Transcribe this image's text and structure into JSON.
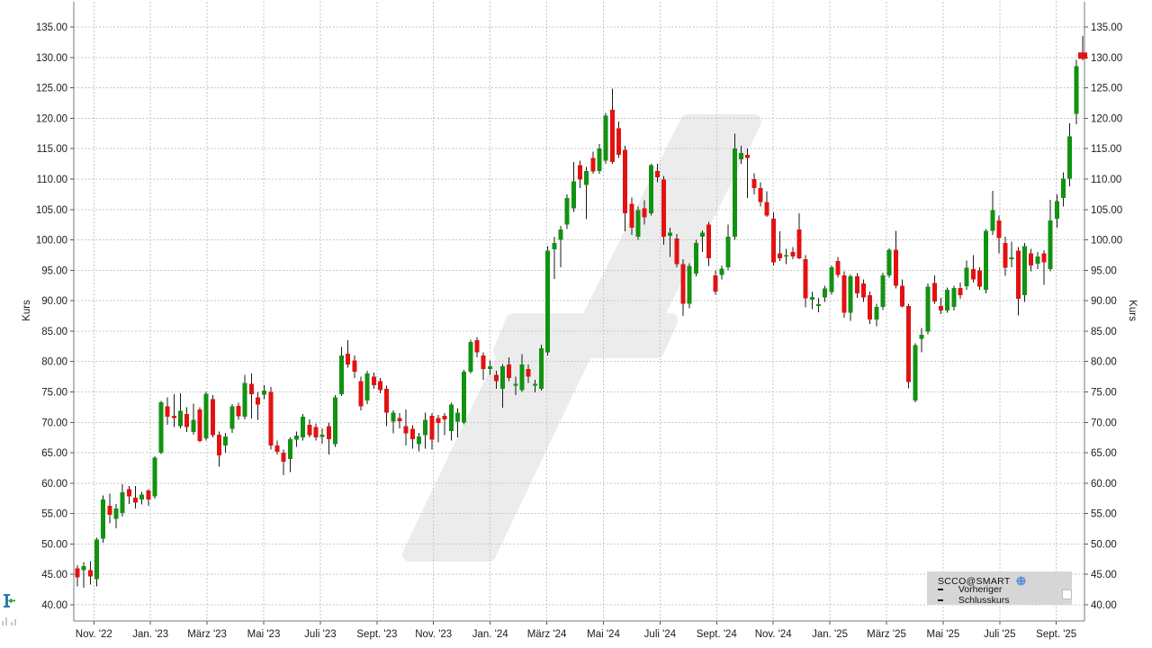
{
  "legend": {
    "symbol": "SCCO@SMART",
    "series_label": "Vorheriger Schlusskurs"
  },
  "icons": {
    "symbol_icon": "globe-icon",
    "series_toggle": "checkbox-icon",
    "left_tool": "price-marker-tool-icon",
    "left_tool2": "mini-bar-chart-icon"
  },
  "chart_data": {
    "type": "candlestick",
    "title": "SCCO@SMART",
    "ylabel_left": "Kurs",
    "ylabel_right": "Kurs",
    "grid": true,
    "legend_position": "bottom-right",
    "up_color": "#129212",
    "down_color": "#e31212",
    "wick_color": "#1a1a1a",
    "grid_color": "#c6c6c6",
    "border_color": "#7a7a7a",
    "watermark_color": "#ececec",
    "last_price_marker": 130.3,
    "y_ticks": [
      40,
      45,
      50,
      55,
      60,
      65,
      70,
      75,
      80,
      85,
      90,
      95,
      100,
      105,
      110,
      115,
      120,
      125,
      130,
      135
    ],
    "y_range": [
      37.3,
      141.7
    ],
    "x_tick_labels": [
      "Nov. '22",
      "Jan. '23",
      "März '23",
      "Mai '23",
      "Juli '23",
      "Sept. '23",
      "Nov. '23",
      "Jan. '24",
      "März '24",
      "Mai '24",
      "Juli '24",
      "Sept. '24",
      "Nov. '24",
      "Jan. '25",
      "März '25",
      "Mai '25",
      "Juli '25",
      "Sept. '25"
    ],
    "x_tick_positions": [
      2.56,
      11.34,
      20.13,
      28.91,
      37.7,
      46.49,
      55.27,
      64.06,
      72.84,
      81.63,
      90.41,
      99.2,
      107.99,
      116.77,
      125.56,
      134.34,
      143.13,
      151.91
    ],
    "candles_ohlc": [
      [
        46,
        46.5,
        43,
        44.5
      ],
      [
        45.7,
        47,
        42.8,
        46.4
      ],
      [
        45.7,
        47.2,
        43.3,
        44.7
      ],
      [
        44.2,
        51,
        43,
        50.7
      ],
      [
        50.9,
        58,
        50.2,
        57.3
      ],
      [
        56.3,
        58.3,
        53.4,
        54.8
      ],
      [
        54.1,
        56.6,
        52.6,
        55.8
      ],
      [
        55.1,
        59.8,
        54.5,
        58.5
      ],
      [
        59,
        59.5,
        56.6,
        57.8
      ],
      [
        57.6,
        59.5,
        55.8,
        56.8
      ],
      [
        57.3,
        58.6,
        56.5,
        58.1
      ],
      [
        58.8,
        59,
        56.3,
        57.3
      ],
      [
        57.8,
        64.4,
        57.5,
        64.2
      ],
      [
        65,
        73.5,
        64.8,
        73.3
      ],
      [
        72.6,
        74.1,
        69.6,
        70.9
      ],
      [
        71.1,
        74.6,
        69.2,
        70.7
      ],
      [
        69.4,
        74.8,
        69,
        71.9
      ],
      [
        71.4,
        72.5,
        68.4,
        69.2
      ],
      [
        68.4,
        73.1,
        68,
        70.4
      ],
      [
        72.1,
        72.5,
        66.7,
        66.9
      ],
      [
        67.4,
        75,
        67,
        74.7
      ],
      [
        73.8,
        74.5,
        67.5,
        67.9
      ],
      [
        68,
        68.5,
        62.7,
        64.6
      ],
      [
        66.2,
        68.3,
        65,
        67.7
      ],
      [
        68.9,
        73,
        68.3,
        72.6
      ],
      [
        72.7,
        73.2,
        70.4,
        71
      ],
      [
        70.9,
        77.8,
        70.5,
        76.5
      ],
      [
        76.3,
        78,
        70.6,
        74.6
      ],
      [
        74.1,
        75,
        70.4,
        72.9
      ],
      [
        74.6,
        76.1,
        73.8,
        75.2
      ],
      [
        75,
        75.8,
        65.5,
        66.2
      ],
      [
        66.2,
        67,
        64.7,
        65.2
      ],
      [
        65,
        65.5,
        61.3,
        63.5
      ],
      [
        64,
        67.5,
        61.8,
        67.2
      ],
      [
        67.2,
        68.5,
        66,
        67.8
      ],
      [
        67.5,
        71.4,
        67,
        70.9
      ],
      [
        69.6,
        70.5,
        67.5,
        67.9
      ],
      [
        69.2,
        69.8,
        67,
        67.5
      ],
      [
        67.6,
        69,
        66.5,
        68
      ],
      [
        69.4,
        70,
        64.7,
        67.2
      ],
      [
        66.4,
        74.5,
        66,
        74.1
      ],
      [
        74.6,
        82.4,
        74.3,
        81
      ],
      [
        81.3,
        83.5,
        79,
        79.5
      ],
      [
        80.2,
        81,
        77.3,
        78.3
      ],
      [
        76.8,
        77.5,
        72,
        72.6
      ],
      [
        73.6,
        78.5,
        73,
        78
      ],
      [
        77.5,
        78.2,
        75.5,
        76.1
      ],
      [
        76.8,
        77.3,
        74.8,
        75.3
      ],
      [
        75.5,
        76,
        69.4,
        71.6
      ],
      [
        70.1,
        72,
        68.2,
        71.6
      ],
      [
        70.7,
        71.5,
        69,
        70.2
      ],
      [
        69.4,
        72.1,
        66.2,
        68.2
      ],
      [
        68.9,
        69.5,
        65.7,
        67.2
      ],
      [
        66.4,
        68.3,
        65.2,
        67.7
      ],
      [
        67.9,
        71.6,
        65.7,
        70.4
      ],
      [
        71.1,
        71.5,
        65.5,
        67.2
      ],
      [
        70.7,
        71.2,
        66.7,
        69.9
      ],
      [
        71.1,
        71.5,
        67.9,
        70.5
      ],
      [
        68.6,
        73.2,
        67,
        72.9
      ],
      [
        70.1,
        72.3,
        67.5,
        71.6
      ],
      [
        70,
        78.6,
        69.7,
        78.3
      ],
      [
        78.3,
        83.6,
        78,
        83.2
      ],
      [
        83.5,
        84,
        80.7,
        81.5
      ],
      [
        81,
        81.5,
        77,
        78.8
      ],
      [
        78.8,
        80.2,
        77.8,
        79.2
      ],
      [
        77.8,
        78.5,
        75.5,
        76.8
      ],
      [
        75.5,
        79.6,
        72.4,
        79.2
      ],
      [
        79.5,
        80.7,
        76.8,
        77.3
      ],
      [
        76,
        77.5,
        74.5,
        76.3
      ],
      [
        75.3,
        81.2,
        75,
        79.5
      ],
      [
        78.8,
        79.5,
        76.5,
        77.5
      ],
      [
        76.1,
        77,
        74.9,
        76.3
      ],
      [
        75.5,
        82.8,
        75.2,
        82.2
      ],
      [
        81.5,
        99,
        81,
        98.2
      ],
      [
        98.5,
        100.5,
        93.6,
        99.5
      ],
      [
        100,
        102.3,
        95.5,
        101.7
      ],
      [
        102.5,
        107.5,
        101.8,
        106.9
      ],
      [
        105.2,
        112.8,
        104.6,
        109.6
      ],
      [
        112.3,
        113,
        108.5,
        109.9
      ],
      [
        109,
        112,
        103.4,
        111.3
      ],
      [
        113.5,
        114.5,
        110.9,
        111.3
      ],
      [
        111.3,
        115.8,
        110.9,
        115
      ],
      [
        113,
        120.9,
        112.5,
        120.4
      ],
      [
        121.4,
        124.9,
        112.5,
        112.8
      ],
      [
        118.4,
        119.5,
        113.5,
        114
      ],
      [
        114.8,
        115.5,
        101.4,
        104.4
      ],
      [
        105.9,
        107,
        100.8,
        102
      ],
      [
        100.5,
        105.5,
        100,
        104.9
      ],
      [
        105.2,
        106.5,
        102.5,
        103.7
      ],
      [
        104.4,
        112.5,
        104,
        112.3
      ],
      [
        111.3,
        112.5,
        109.5,
        110.3
      ],
      [
        109.9,
        110.5,
        99.2,
        100.5
      ],
      [
        100.7,
        102,
        97.2,
        101.2
      ],
      [
        100.2,
        101,
        95.5,
        96
      ],
      [
        96,
        96.8,
        87.5,
        89.5
      ],
      [
        89.5,
        96.2,
        88.8,
        95.7
      ],
      [
        94.5,
        100,
        94,
        99.5
      ],
      [
        100.5,
        101.6,
        98,
        101.2
      ],
      [
        102.5,
        103,
        95.7,
        97
      ],
      [
        94.2,
        95,
        91,
        91.5
      ],
      [
        94.2,
        95.8,
        93.5,
        95.3
      ],
      [
        95.5,
        102.5,
        95,
        100.5
      ],
      [
        100.5,
        117.5,
        100,
        115
      ],
      [
        113.3,
        115.5,
        112.5,
        114.3
      ],
      [
        114,
        115,
        106.9,
        113.5
      ],
      [
        110,
        111,
        107.5,
        108.5
      ],
      [
        108.5,
        109.5,
        105.5,
        106.2
      ],
      [
        106.2,
        108,
        103.8,
        104
      ],
      [
        103.5,
        104.5,
        95.8,
        96.3
      ],
      [
        97.8,
        101.4,
        96.5,
        97
      ],
      [
        97.3,
        98.5,
        96,
        97.5
      ],
      [
        98,
        98.8,
        96.8,
        97.3
      ],
      [
        101.7,
        104.4,
        96.8,
        97
      ],
      [
        96.8,
        97.5,
        88.9,
        90.4
      ],
      [
        90.2,
        91.5,
        88.6,
        90.6
      ],
      [
        89.2,
        90.5,
        88.1,
        89.4
      ],
      [
        90.5,
        92.5,
        89.8,
        92
      ],
      [
        91.4,
        95.8,
        91,
        95.5
      ],
      [
        96.5,
        97.2,
        93.8,
        94.2
      ],
      [
        94.2,
        94.8,
        87.2,
        88
      ],
      [
        88,
        94.3,
        86.7,
        94
      ],
      [
        94,
        94.5,
        90.5,
        91.2
      ],
      [
        92.8,
        93.5,
        89.8,
        90.5
      ],
      [
        90.9,
        91.5,
        86.2,
        86.9
      ],
      [
        86.9,
        89.5,
        85.8,
        89
      ],
      [
        89,
        94.6,
        88.5,
        94.2
      ],
      [
        94.2,
        98.6,
        93.8,
        98.4
      ],
      [
        98.4,
        101.5,
        92,
        92.5
      ],
      [
        92.5,
        93.5,
        88.9,
        89.1
      ],
      [
        89.1,
        89.5,
        75.6,
        76.6
      ],
      [
        73.6,
        83,
        73.3,
        82.7
      ],
      [
        83.7,
        85.5,
        81.5,
        84.4
      ],
      [
        84.9,
        92.8,
        84.5,
        92.3
      ],
      [
        92.9,
        94.2,
        89.5,
        89.9
      ],
      [
        89.1,
        90.5,
        87.8,
        88.4
      ],
      [
        88.4,
        92.2,
        88,
        91.8
      ],
      [
        89,
        92.5,
        88.4,
        92.1
      ],
      [
        92.1,
        93,
        90.3,
        90.9
      ],
      [
        92.4,
        96.6,
        91.8,
        95.4
      ],
      [
        95.2,
        97.5,
        93,
        93.5
      ],
      [
        95,
        95.5,
        91.8,
        92.3
      ],
      [
        91.8,
        101.8,
        91.2,
        101.5
      ],
      [
        101.5,
        108.1,
        100.8,
        104.9
      ],
      [
        103.2,
        104,
        97.8,
        100.3
      ],
      [
        99.5,
        100.5,
        94.1,
        95.4
      ],
      [
        96.8,
        99.7,
        95.5,
        97.1
      ],
      [
        98.2,
        98.8,
        87.6,
        90.3
      ],
      [
        90.9,
        99.5,
        89.8,
        99
      ],
      [
        97.8,
        98.5,
        94.8,
        95.8
      ],
      [
        96.1,
        98,
        95.2,
        97.3
      ],
      [
        97.8,
        98.3,
        92.6,
        96.3
      ],
      [
        95.2,
        106.6,
        94.8,
        103.2
      ],
      [
        103.5,
        107.5,
        102,
        106.4
      ],
      [
        106.9,
        111.1,
        105.5,
        110.1
      ],
      [
        110.1,
        119.2,
        108.8,
        117
      ],
      [
        120.7,
        129.6,
        119,
        128.6
      ],
      [
        130.8,
        133.5,
        129.5,
        130.1
      ]
    ]
  }
}
